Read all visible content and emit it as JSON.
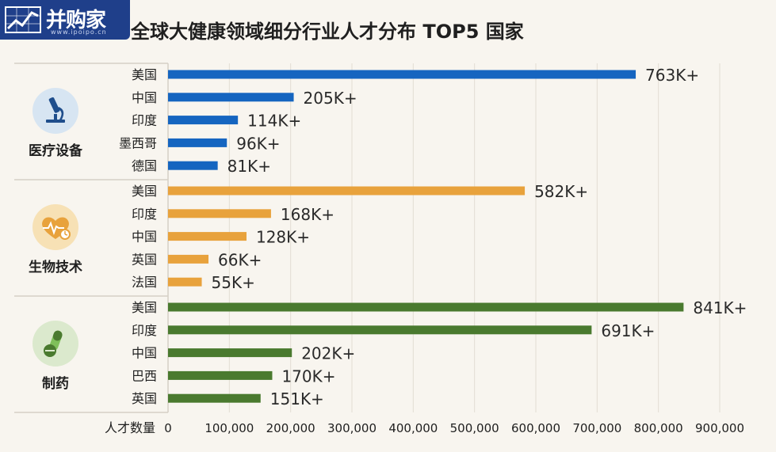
{
  "header": {
    "logo_text": "并购家",
    "logo_sub": "www.ipoipo.cn",
    "title": "全球大健康领域细分行业人才分布 TOP5 国家"
  },
  "chart_data": {
    "type": "bar",
    "orientation": "horizontal",
    "title": "全球大健康领域细分行业人才分布 TOP5 国家",
    "xlabel": "人才数量",
    "xlim": [
      0,
      900000
    ],
    "xticks": [
      "0",
      "100,000",
      "200,000",
      "300,000",
      "400,000",
      "500,000",
      "600,000",
      "700,000",
      "800,000",
      "900,000"
    ],
    "grid": true,
    "groups": [
      {
        "name": "医疗设备",
        "icon": "microscope-icon",
        "color": "#1565c0",
        "circle_color": "#d7e5f2",
        "bars": [
          {
            "label": "美国",
            "value": 763000,
            "text": "763K+"
          },
          {
            "label": "中国",
            "value": 205000,
            "text": "205K+"
          },
          {
            "label": "印度",
            "value": 114000,
            "text": "114K+"
          },
          {
            "label": "墨西哥",
            "value": 96000,
            "text": "96K+"
          },
          {
            "label": "德国",
            "value": 81000,
            "text": "81K+"
          }
        ]
      },
      {
        "name": "生物技术",
        "icon": "heart-pulse-icon",
        "color": "#e8a23c",
        "circle_color": "#f7e1b5",
        "bars": [
          {
            "label": "美国",
            "value": 582000,
            "text": "582K+"
          },
          {
            "label": "印度",
            "value": 168000,
            "text": "168K+"
          },
          {
            "label": "中国",
            "value": 128000,
            "text": "128K+"
          },
          {
            "label": "英国",
            "value": 66000,
            "text": "66K+"
          },
          {
            "label": "法国",
            "value": 55000,
            "text": "55K+"
          }
        ]
      },
      {
        "name": "制药",
        "icon": "pill-icon",
        "color": "#4a7a2f",
        "circle_color": "#dbe9cd",
        "bars": [
          {
            "label": "美国",
            "value": 841000,
            "text": "841K+"
          },
          {
            "label": "印度",
            "value": 691000,
            "text": "691K+"
          },
          {
            "label": "中国",
            "value": 202000,
            "text": "202K+"
          },
          {
            "label": "巴西",
            "value": 170000,
            "text": "170K+"
          },
          {
            "label": "英国",
            "value": 151000,
            "text": "151K+"
          }
        ]
      }
    ]
  }
}
